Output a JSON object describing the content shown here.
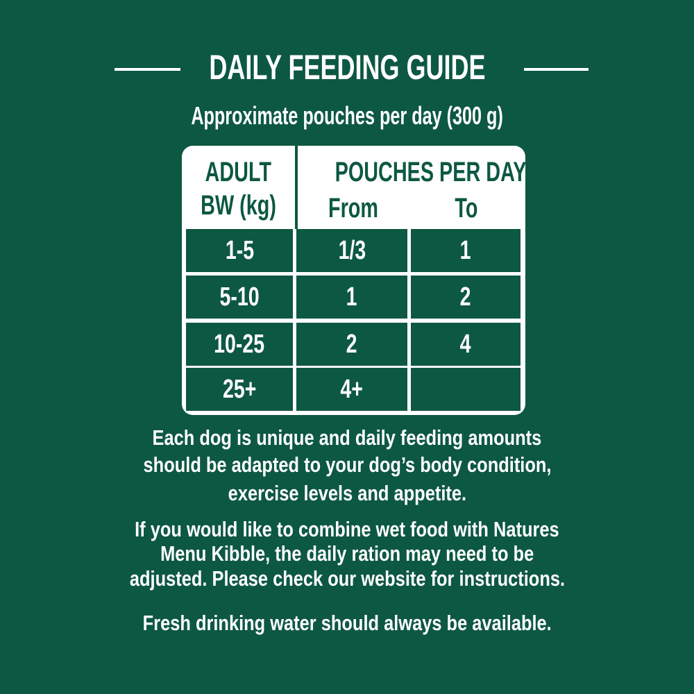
{
  "title": "DAILY FEEDING GUIDE",
  "subtitle": "Approximate pouches per day (300 g)",
  "table": {
    "col1_header_line1": "ADULT",
    "col1_header_line2": "BW (kg)",
    "group_header": "POUCHES PER DAY",
    "col2_header": "From",
    "col3_header": "To",
    "rows": [
      {
        "bw": "1-5",
        "from": "1/3",
        "to": "1"
      },
      {
        "bw": "5-10",
        "from": "1",
        "to": "2"
      },
      {
        "bw": "10-25",
        "from": "2",
        "to": "4"
      },
      {
        "bw": "25+",
        "from": "4+",
        "to": ""
      }
    ]
  },
  "paragraphs": [
    [
      "Each dog is unique and daily feeding amounts",
      "should be adapted to your dog’s body condition,",
      "exercise levels and appetite."
    ],
    [
      "If you would like to combine wet food with Natures",
      "Menu Kibble, the daily ration may need to be",
      "adjusted. Please check our website for instructions."
    ],
    [
      "Fresh drinking water should always be available."
    ]
  ],
  "colors": {
    "background": "#0d5842",
    "text": "#ffffff"
  }
}
